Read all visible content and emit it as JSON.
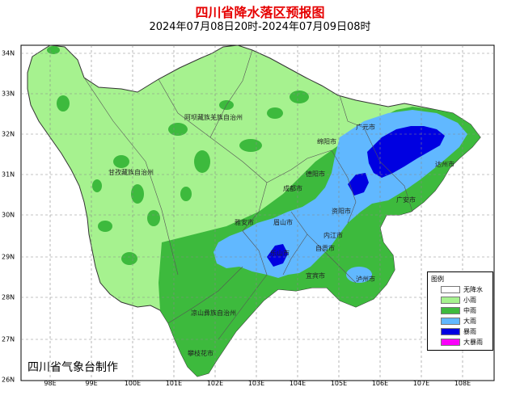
{
  "title": "四川省降水落区预报图",
  "subtitle": "2024年07月08日20时-2024年07月09日08时",
  "credit": "四川省气象台制作",
  "axes": {
    "longitudes": [
      "98E",
      "99E",
      "100E",
      "101E",
      "102E",
      "103E",
      "104E",
      "105E",
      "106E",
      "107E",
      "108E"
    ],
    "latitudes": [
      "34N",
      "33N",
      "32N",
      "31N",
      "30N",
      "29N",
      "28N",
      "27N",
      "26N"
    ]
  },
  "legend": {
    "title": "图例",
    "items": [
      {
        "label": "无降水",
        "color": "#ffffff"
      },
      {
        "label": "小雨",
        "color": "#a6f28f"
      },
      {
        "label": "中雨",
        "color": "#3dba3d"
      },
      {
        "label": "大雨",
        "color": "#61b8ff"
      },
      {
        "label": "暴雨",
        "color": "#0000e1"
      },
      {
        "label": "大暴雨",
        "color": "#fa00fa"
      }
    ]
  },
  "places": {
    "aba": "阿坝藏族羌族自治州",
    "ganzi": "甘孜藏族自治州",
    "guangyuan": "广元市",
    "mianyang": "绵阳市",
    "deyang": "德阳市",
    "chengdu": "成都市",
    "dazhou": "达州市",
    "guangan": "广安市",
    "yaan": "雅安市",
    "meishan": "眉山市",
    "ziyang": "资阳市",
    "neijiang": "内江市",
    "zigong": "自贡市",
    "leshan": "乐山市",
    "yibin": "宜宾市",
    "luzhou": "泸州市",
    "liangshan": "凉山彝族自治州",
    "panzhihua": "攀枝花市"
  }
}
